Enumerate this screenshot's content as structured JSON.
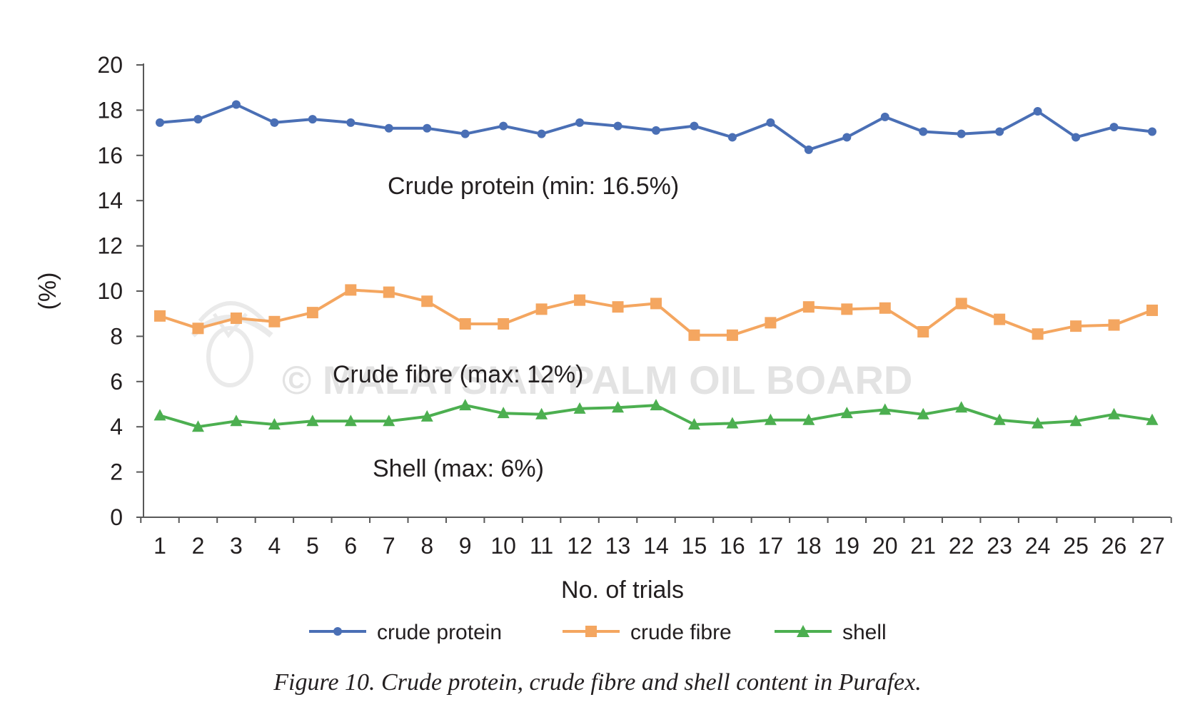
{
  "chart_data": {
    "type": "line",
    "categories": [
      "1",
      "2",
      "3",
      "4",
      "5",
      "6",
      "7",
      "8",
      "9",
      "10",
      "11",
      "12",
      "13",
      "14",
      "15",
      "16",
      "17",
      "18",
      "19",
      "20",
      "21",
      "22",
      "23",
      "24",
      "25",
      "26",
      "27"
    ],
    "series": [
      {
        "name": "crude protein",
        "color": "#4a6fb5",
        "marker": "circle",
        "values": [
          17.45,
          17.6,
          18.25,
          17.45,
          17.6,
          17.45,
          17.2,
          17.2,
          16.95,
          17.3,
          16.95,
          17.45,
          17.3,
          17.1,
          17.3,
          16.8,
          17.45,
          16.25,
          16.8,
          17.7,
          17.05,
          16.95,
          17.05,
          17.95,
          16.8,
          17.25,
          17.05
        ]
      },
      {
        "name": "crude fibre",
        "color": "#f4a660",
        "marker": "square",
        "values": [
          8.9,
          8.35,
          8.8,
          8.65,
          9.05,
          10.05,
          9.95,
          9.55,
          8.55,
          8.55,
          9.2,
          9.6,
          9.3,
          9.45,
          8.05,
          8.05,
          8.6,
          9.3,
          9.2,
          9.25,
          8.2,
          9.45,
          8.75,
          8.1,
          8.45,
          8.5,
          9.15
        ]
      },
      {
        "name": "shell",
        "color": "#4caf50",
        "marker": "triangle",
        "values": [
          4.5,
          4.0,
          4.25,
          4.1,
          4.25,
          4.25,
          4.25,
          4.45,
          4.95,
          4.6,
          4.55,
          4.8,
          4.85,
          4.95,
          4.1,
          4.15,
          4.3,
          4.3,
          4.6,
          4.75,
          4.55,
          4.85,
          4.3,
          4.15,
          4.25,
          4.55,
          4.3
        ]
      }
    ],
    "ylim": [
      0,
      20
    ],
    "yticks": [
      0,
      2,
      4,
      6,
      8,
      10,
      12,
      14,
      16,
      18,
      20
    ],
    "xlabel": "No. of trials",
    "ylabel": "(%)",
    "legend_position": "bottom",
    "grid": false,
    "annotations": [
      {
        "text": "Crude protein (min: 16.5%)"
      },
      {
        "text": "Crude fibre (max: 12%)"
      },
      {
        "text": "Shell (max: 6%)"
      }
    ]
  },
  "watermark": "© MALAYSIAN PALM OIL BOARD",
  "caption": "Figure 10. Crude protein, crude fibre and shell content in Purafex."
}
